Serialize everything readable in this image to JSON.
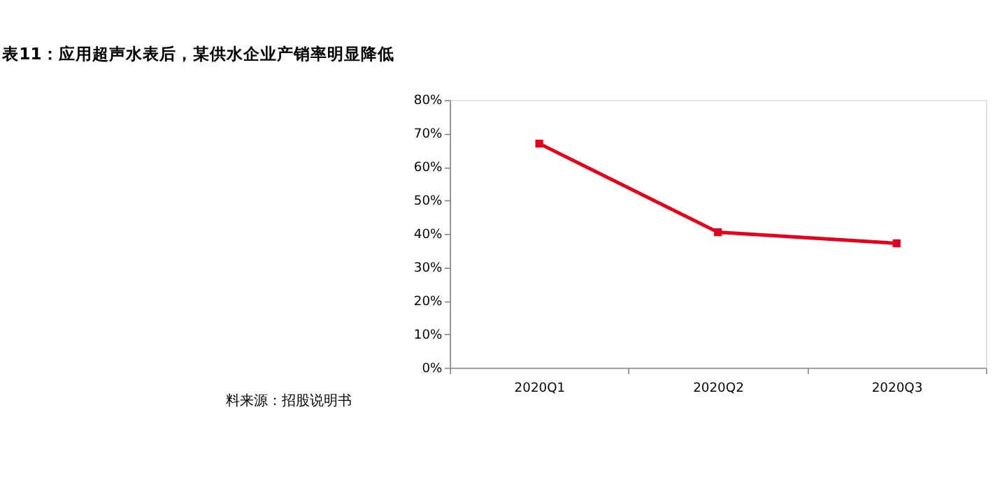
{
  "chart_data": {
    "type": "line",
    "title": "表11：应用超声水表后，某供水企业产销率明显降低",
    "categories": [
      "2020Q1",
      "2020Q2",
      "2020Q3"
    ],
    "series": [
      {
        "color": "#e5001c",
        "values": [
          67,
          40.5,
          37.2
        ]
      }
    ],
    "ylim": [
      0,
      80
    ],
    "yticks": [
      {
        "value": 0,
        "label": "0%"
      },
      {
        "value": 10,
        "label": "10%"
      },
      {
        "value": 20,
        "label": "20%"
      },
      {
        "value": 30,
        "label": "30%"
      },
      {
        "value": 40,
        "label": "40%"
      },
      {
        "value": 50,
        "label": "50%"
      },
      {
        "value": 60,
        "label": "60%"
      },
      {
        "value": 70,
        "label": "70%"
      },
      {
        "value": 80,
        "label": "80%"
      }
    ],
    "marker": "square",
    "line_style": "solid",
    "grid": false,
    "annotations": [
      "料来源：招股说明书"
    ]
  }
}
